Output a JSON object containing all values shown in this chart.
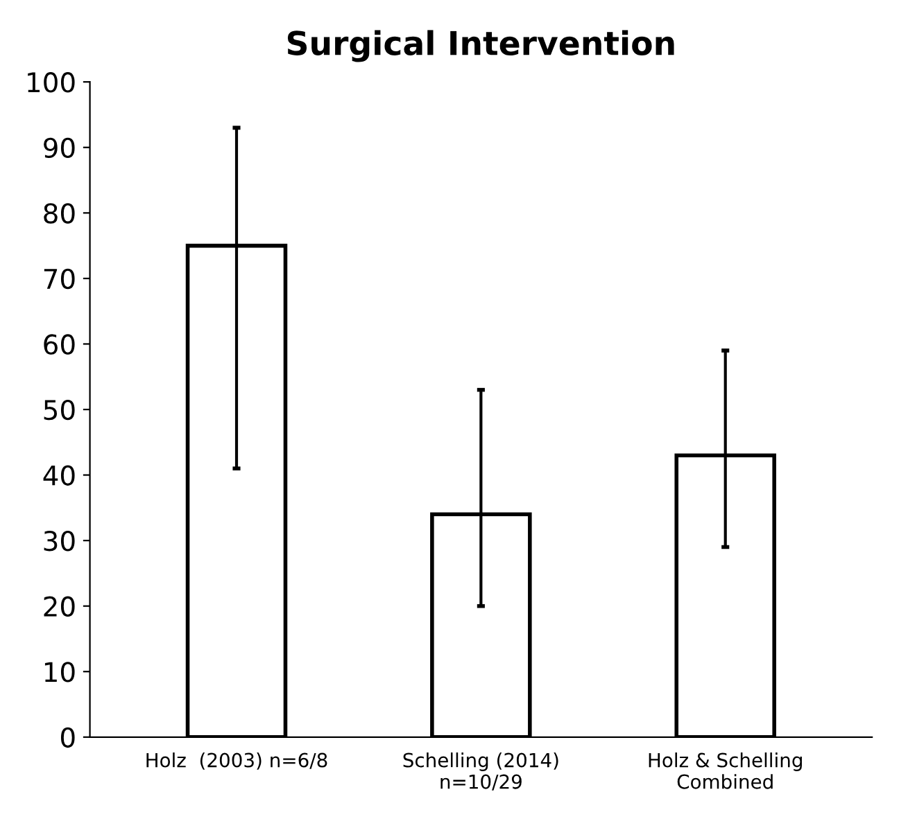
{
  "chart_data": {
    "type": "bar",
    "title": "Surgical Intervention",
    "categories": [
      "Holz  (2003) n=6/8",
      "Schelling (2014)\nn=10/29",
      "Holz & Schelling\nCombined"
    ],
    "values": [
      75,
      34,
      43
    ],
    "errors": [
      [
        41,
        93
      ],
      [
        20,
        53
      ],
      [
        29,
        59
      ]
    ],
    "color": "#ffffff",
    "ylim": [
      0,
      100
    ],
    "yticks": [
      0,
      10,
      20,
      30,
      40,
      50,
      60,
      70,
      80,
      90,
      100
    ],
    "grid": false
  }
}
